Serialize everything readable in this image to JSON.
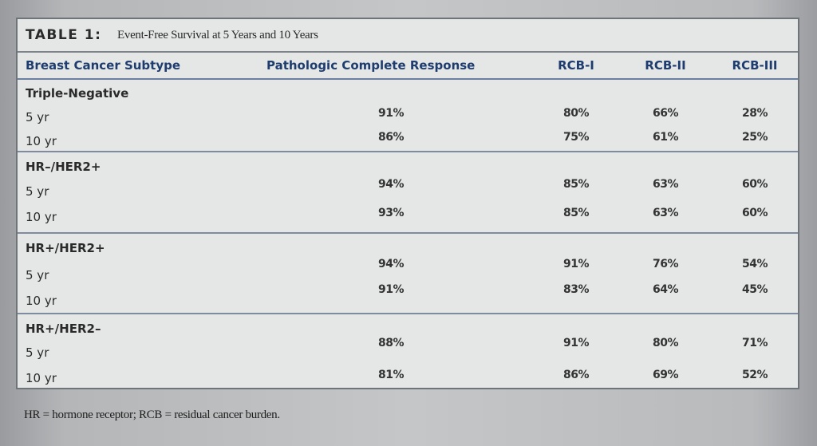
{
  "table": {
    "label": "TABLE 1:",
    "title": "Event-Free Survival at 5 Years and 10 Years",
    "columns": [
      "Breast Cancer Subtype",
      "Pathologic Complete Response",
      "RCB-I",
      "RCB-II",
      "RCB-III"
    ],
    "groups": [
      {
        "name": "Triple-Negative",
        "rows": [
          {
            "label": "5 yr",
            "values": [
              "91%",
              "80%",
              "66%",
              "28%"
            ]
          },
          {
            "label": "10 yr",
            "values": [
              "86%",
              "75%",
              "61%",
              "25%"
            ]
          }
        ]
      },
      {
        "name": "HR–/HER2+",
        "rows": [
          {
            "label": "5 yr",
            "values": [
              "94%",
              "85%",
              "63%",
              "60%"
            ]
          },
          {
            "label": "10 yr",
            "values": [
              "93%",
              "85%",
              "63%",
              "60%"
            ]
          }
        ]
      },
      {
        "name": "HR+/HER2+",
        "rows": [
          {
            "label": "5 yr",
            "values": [
              "94%",
              "91%",
              "76%",
              "54%"
            ]
          },
          {
            "label": "10 yr",
            "values": [
              "91%",
              "83%",
              "64%",
              "45%"
            ]
          }
        ]
      },
      {
        "name": "HR+/HER2–",
        "rows": [
          {
            "label": "5 yr",
            "values": [
              "88%",
              "91%",
              "80%",
              "71%"
            ]
          },
          {
            "label": "10 yr",
            "values": [
              "81%",
              "86%",
              "69%",
              "52%"
            ]
          }
        ]
      }
    ],
    "footnote": "HR = hormone receptor; RCB = residual cancer burden."
  },
  "colors": {
    "header_text": "#1e3d6e",
    "table_bg": "#e5e7e7"
  }
}
